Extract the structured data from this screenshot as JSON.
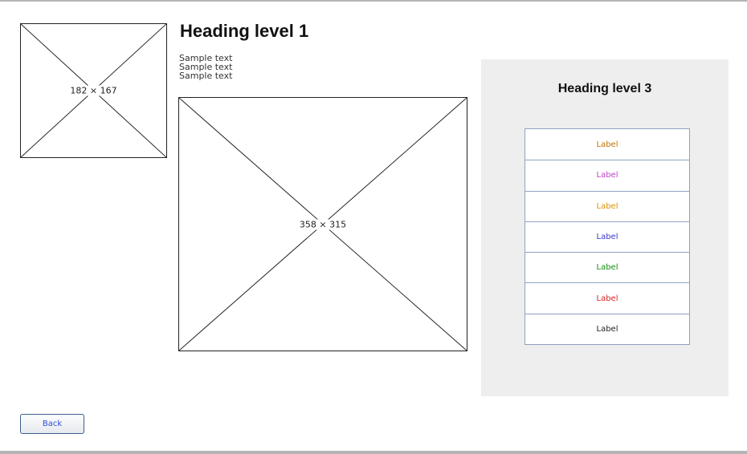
{
  "placeholders": {
    "small": {
      "label": "182 × 167"
    },
    "large": {
      "label": "358 × 315"
    }
  },
  "heading1": "Heading level 1",
  "sample_text": [
    "Sample text",
    "Sample text",
    "Sample text"
  ],
  "panel": {
    "heading3": "Heading level 3",
    "list": [
      {
        "label": "Label",
        "color": "#c07000"
      },
      {
        "label": "Label",
        "color": "#c040c8"
      },
      {
        "label": "Label",
        "color": "#e09000"
      },
      {
        "label": "Label",
        "color": "#3a3ad0"
      },
      {
        "label": "Label",
        "color": "#109010"
      },
      {
        "label": "Label",
        "color": "#e02020"
      },
      {
        "label": "Label",
        "color": "#222222"
      }
    ]
  },
  "back_button": {
    "label": "Back"
  }
}
